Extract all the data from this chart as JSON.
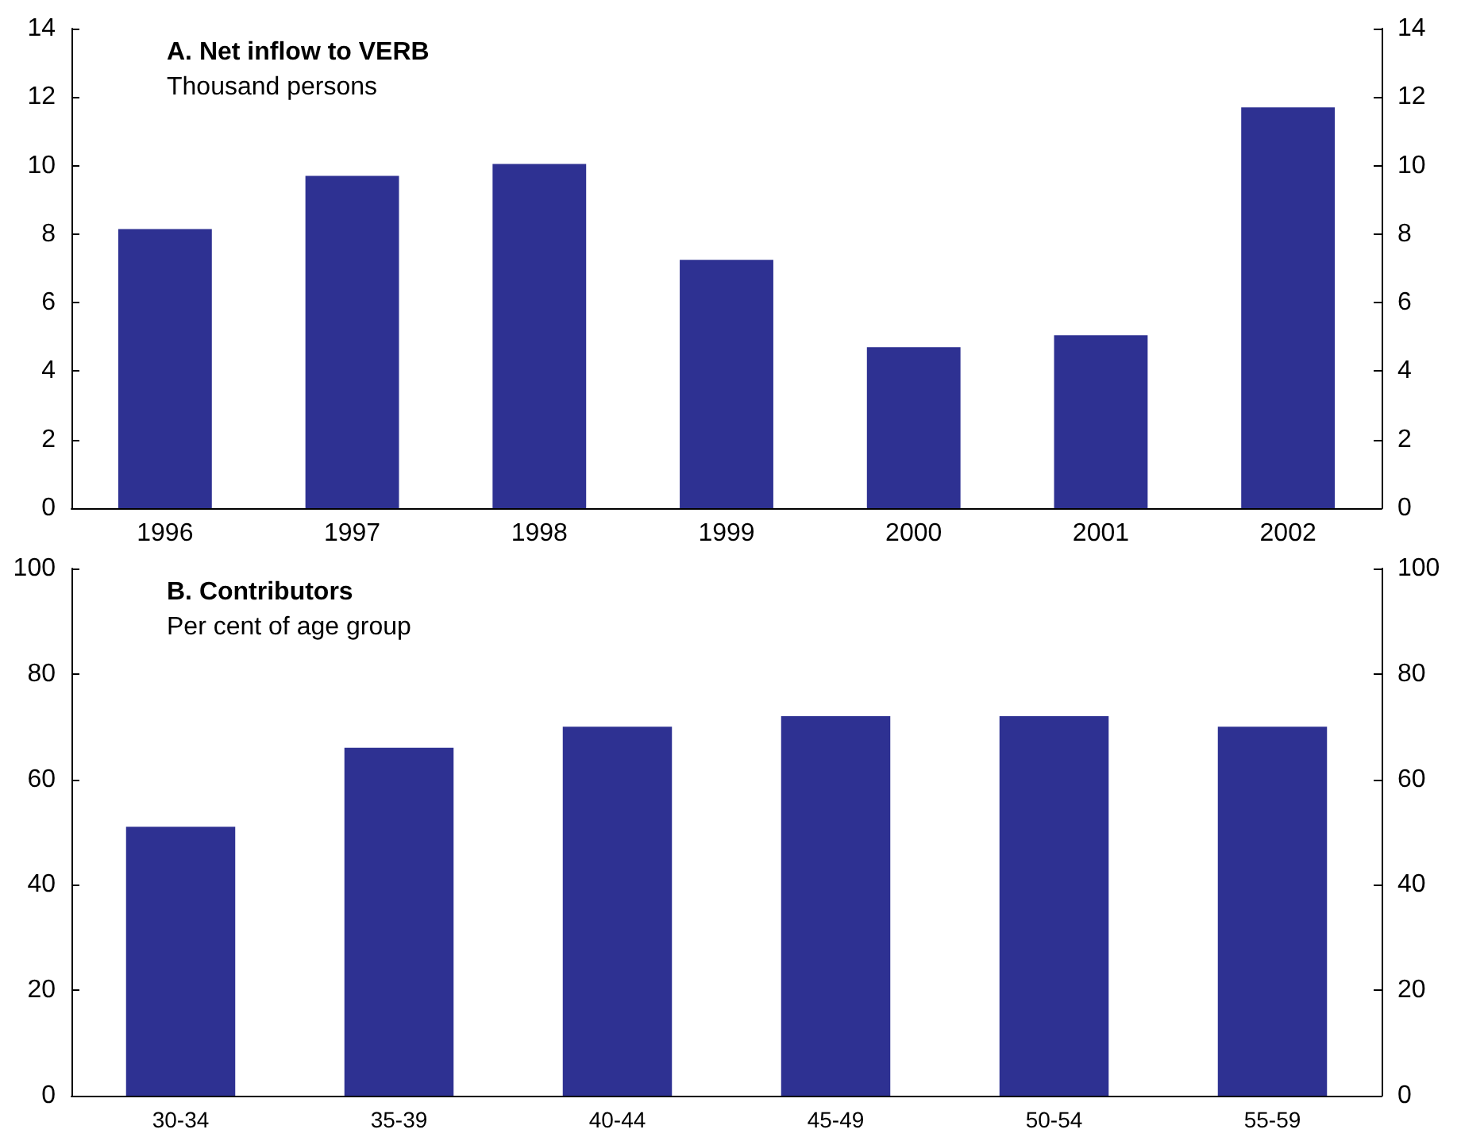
{
  "chart_data": [
    {
      "type": "bar",
      "title": "A. Net inflow to VERB",
      "subtitle": "Thousand persons",
      "categories": [
        "1996",
        "1997",
        "1998",
        "1999",
        "2000",
        "2001",
        "2002"
      ],
      "values": [
        8.15,
        9.7,
        10.05,
        7.25,
        4.7,
        5.05,
        11.7
      ],
      "color": "#2e3192",
      "ylim": [
        0,
        14
      ],
      "yticks": [
        0,
        2,
        4,
        6,
        8,
        10,
        12,
        14
      ],
      "y2lim": [
        0,
        14
      ],
      "y2ticks": [
        0,
        2,
        4,
        6,
        8,
        10,
        12,
        14
      ]
    },
    {
      "type": "bar",
      "title": "B. Contributors",
      "subtitle": "Per cent of age group",
      "categories": [
        "30-34",
        "35-39",
        "40-44",
        "45-49",
        "50-54",
        "55-59"
      ],
      "values": [
        51,
        66,
        70,
        72,
        72,
        70
      ],
      "color": "#2e3192",
      "ylim": [
        0,
        100
      ],
      "yticks": [
        0,
        20,
        40,
        60,
        80,
        100
      ],
      "y2lim": [
        0,
        100
      ],
      "y2ticks": [
        0,
        20,
        40,
        60,
        80,
        100
      ]
    }
  ]
}
